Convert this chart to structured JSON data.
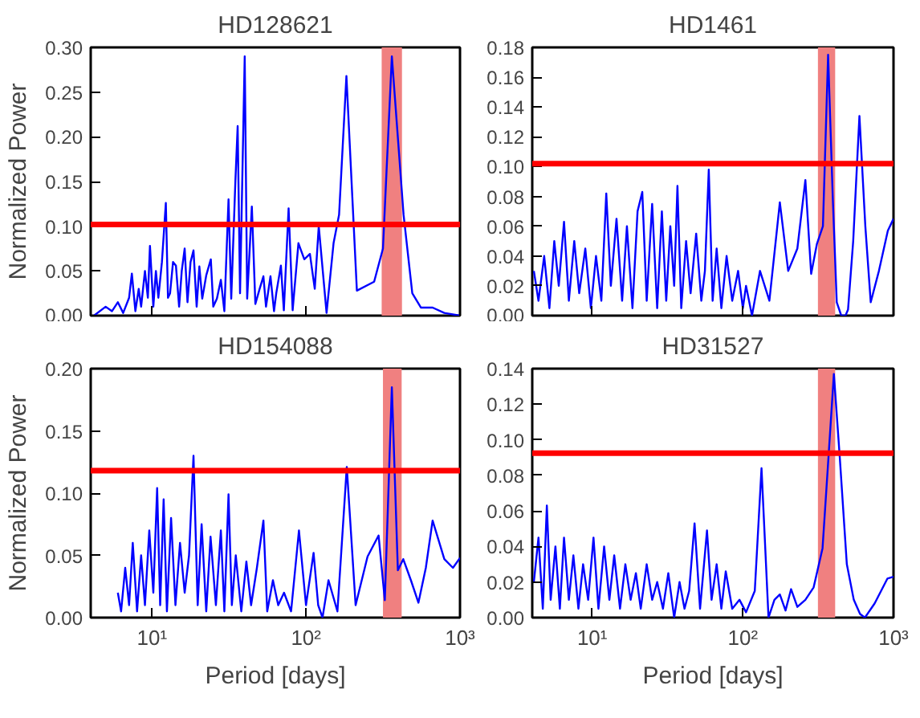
{
  "chart_data": [
    {
      "type": "line",
      "title": "HD128621",
      "ylabel": "Normalized Power",
      "log": "x",
      "grid": false,
      "tick_labels": "y",
      "xlim": [
        4,
        1000
      ],
      "xticks": [
        {
          "value": 10,
          "label": null
        },
        {
          "value": 100,
          "label": null
        },
        {
          "value": 1000,
          "label": null
        }
      ],
      "ylim": [
        0,
        0.3
      ],
      "yticks": [
        {
          "value": 0,
          "label": "0.00"
        },
        {
          "value": 0.05,
          "label": "0.05"
        },
        {
          "value": 0.1,
          "label": "0.10"
        },
        {
          "value": 0.15,
          "label": "0.15"
        },
        {
          "value": 0.2,
          "label": "0.20"
        },
        {
          "value": 0.25,
          "label": "0.25"
        },
        {
          "value": 0.3,
          "label": "0.30"
        }
      ],
      "x": [
        4.2,
        5.0,
        5.5,
        6.0,
        6.5,
        7.1,
        7.4,
        7.8,
        8.2,
        8.5,
        9.0,
        9.4,
        9.7,
        10.2,
        10.6,
        11.0,
        11.6,
        12.3,
        12.7,
        13.1,
        13.7,
        14.3,
        15,
        15.6,
        16.3,
        17,
        17.8,
        18.6,
        19.5,
        20.3,
        21.2,
        22.5,
        24.1,
        25,
        26.4,
        28,
        29.5,
        31.4,
        32.7,
        34.8,
        36.0,
        37.3,
        40.0,
        41.5,
        44.5,
        46.9,
        50,
        52.9,
        55,
        58.8,
        62,
        64.1,
        68.7,
        71.8,
        77.1,
        81.9,
        89.3,
        97.5,
        106,
        114,
        121,
        136,
        151,
        164,
        183,
        214,
        277,
        316,
        361,
        430,
        490,
        557,
        664,
        791,
        1000
      ],
      "series": [
        {
          "color": "#0000ff",
          "values": [
            0.0,
            0.01,
            0.005,
            0.015,
            0.003,
            0.02,
            0.047,
            0.005,
            0.03,
            0.01,
            0.05,
            0.02,
            0.078,
            0.01,
            0.05,
            0.02,
            0.06,
            0.126,
            0.02,
            0.025,
            0.06,
            0.056,
            0.01,
            0.05,
            0.075,
            0.015,
            0.06,
            0.073,
            0.01,
            0.055,
            0.019,
            0.045,
            0.063,
            0.01,
            0.019,
            0.04,
            0.005,
            0.13,
            0.019,
            0.151,
            0.212,
            0.025,
            0.29,
            0.019,
            0.122,
            0.013,
            0.03,
            0.044,
            0.01,
            0.044,
            0.005,
            0.025,
            0.056,
            0.006,
            0.12,
            0.006,
            0.081,
            0.063,
            0.069,
            0.03,
            0.1,
            0.003,
            0.081,
            0.113,
            0.268,
            0.028,
            0.038,
            0.075,
            0.29,
            0.113,
            0.025,
            0.009,
            0.009,
            0.003,
            0.0
          ]
        }
      ],
      "ref_lines": [
        {
          "axis": "y",
          "value": 0.102,
          "color": "#ff0000"
        }
      ],
      "bands": [
        {
          "axis": "x",
          "from": 310,
          "to": 420,
          "color": "#f08080"
        }
      ]
    },
    {
      "type": "line",
      "title": "HD1461",
      "log": "x",
      "grid": false,
      "tick_labels": "y",
      "xlim": [
        4,
        1000
      ],
      "xticks": [
        {
          "value": 10,
          "label": null
        },
        {
          "value": 100,
          "label": null
        },
        {
          "value": 1000,
          "label": null
        }
      ],
      "ylim": [
        0,
        0.18
      ],
      "yticks": [
        {
          "value": 0,
          "label": "0.00"
        },
        {
          "value": 0.02,
          "label": "0.02"
        },
        {
          "value": 0.04,
          "label": "0.04"
        },
        {
          "value": 0.06,
          "label": "0.06"
        },
        {
          "value": 0.08,
          "label": "0.08"
        },
        {
          "value": 0.1,
          "label": "0.10"
        },
        {
          "value": 0.12,
          "label": "0.12"
        },
        {
          "value": 0.14,
          "label": "0.14"
        },
        {
          "value": 0.16,
          "label": "0.16"
        },
        {
          "value": 0.18,
          "label": "0.18"
        }
      ],
      "x": [
        4.1,
        4.4,
        4.8,
        5.2,
        5.6,
        6.0,
        6.5,
        7.0,
        7.6,
        8.2,
        9.0,
        9.8,
        10.6,
        11.5,
        12.4,
        13.3,
        14.5,
        15.8,
        17,
        18.5,
        20,
        21.5,
        23,
        25,
        27,
        29,
        31,
        33,
        35,
        36.8,
        39,
        42,
        45,
        49,
        53,
        56,
        59.4,
        63,
        67,
        72,
        78,
        85,
        93,
        100,
        105,
        115,
        130,
        150,
        176,
        200,
        230,
        260,
        284,
        310,
        340,
        368,
        395,
        420,
        450,
        480,
        499,
        540,
        594,
        650,
        706,
        800,
        917,
        1000
      ],
      "series": [
        {
          "color": "#0000ff",
          "values": [
            0.03,
            0.01,
            0.04,
            0.005,
            0.05,
            0.02,
            0.063,
            0.01,
            0.05,
            0.015,
            0.045,
            0.005,
            0.04,
            0.01,
            0.082,
            0.02,
            0.065,
            0.01,
            0.06,
            0.005,
            0.07,
            0.083,
            0.01,
            0.075,
            0.005,
            0.07,
            0.01,
            0.06,
            0.02,
            0.087,
            0.005,
            0.05,
            0.015,
            0.055,
            0.01,
            0.03,
            0.098,
            0.01,
            0.045,
            0.005,
            0.04,
            0.01,
            0.03,
            0.005,
            0.02,
            0.0,
            0.03,
            0.01,
            0.076,
            0.03,
            0.045,
            0.091,
            0.028,
            0.048,
            0.06,
            0.175,
            0.08,
            0.009,
            0.0,
            0.0,
            0.004,
            0.05,
            0.134,
            0.06,
            0.009,
            0.03,
            0.057,
            0.065
          ]
        }
      ],
      "ref_lines": [
        {
          "axis": "y",
          "value": 0.102,
          "color": "#ff0000"
        }
      ],
      "bands": [
        {
          "axis": "x",
          "from": 315,
          "to": 410,
          "color": "#f08080"
        }
      ]
    },
    {
      "type": "line",
      "title": "HD154088",
      "ylabel": "Normalized Power",
      "xlabel": "Period [days]",
      "log": "x",
      "grid": false,
      "xlim": [
        4,
        1000
      ],
      "xticks": [
        {
          "value": 10,
          "label": "10¹"
        },
        {
          "value": 100,
          "label": "10²"
        },
        {
          "value": 1000,
          "label": "10³"
        }
      ],
      "ylim": [
        0,
        0.2
      ],
      "yticks": [
        {
          "value": 0,
          "label": "0.00"
        },
        {
          "value": 0.05,
          "label": "0.05"
        },
        {
          "value": 0.1,
          "label": "0.10"
        },
        {
          "value": 0.15,
          "label": "0.15"
        },
        {
          "value": 0.2,
          "label": "0.20"
        }
      ],
      "x": [
        6.0,
        6.3,
        6.7,
        7.1,
        7.5,
        8.0,
        8.5,
        9.0,
        9.6,
        10.2,
        10.8,
        11.3,
        11.9,
        12.5,
        13.3,
        14.2,
        15.2,
        16.3,
        17.4,
        18.6,
        19.8,
        21,
        22.5,
        24,
        26,
        28,
        29.5,
        31.4,
        33,
        35,
        38,
        41,
        44,
        48,
        52.9,
        56,
        61,
        66,
        72,
        80,
        90,
        100,
        112,
        120,
        128,
        140,
        160,
        184,
        210,
        251,
        296,
        325,
        361,
        395,
        428,
        480,
        537,
        600,
        664,
        791,
        900,
        1000
      ],
      "series": [
        {
          "color": "#0000ff",
          "values": [
            0.02,
            0.005,
            0.04,
            0.01,
            0.06,
            0.005,
            0.05,
            0.01,
            0.07,
            0.02,
            0.104,
            0.01,
            0.095,
            0.005,
            0.08,
            0.01,
            0.06,
            0.02,
            0.05,
            0.13,
            0.01,
            0.075,
            0.005,
            0.065,
            0.01,
            0.07,
            0.005,
            0.099,
            0.01,
            0.05,
            0.005,
            0.045,
            0.01,
            0.04,
            0.078,
            0.005,
            0.03,
            0.01,
            0.02,
            0.005,
            0.07,
            0.01,
            0.052,
            0.01,
            0.0,
            0.03,
            0.005,
            0.121,
            0.01,
            0.049,
            0.066,
            0.014,
            0.185,
            0.038,
            0.047,
            0.03,
            0.012,
            0.04,
            0.078,
            0.047,
            0.04,
            0.048
          ]
        }
      ],
      "ref_lines": [
        {
          "axis": "y",
          "value": 0.118,
          "color": "#ff0000"
        }
      ],
      "bands": [
        {
          "axis": "x",
          "from": 316,
          "to": 418,
          "color": "#f08080"
        }
      ]
    },
    {
      "type": "line",
      "title": "HD31527",
      "xlabel": "Period [days]",
      "log": "x",
      "grid": false,
      "xlim": [
        4,
        1000
      ],
      "xticks": [
        {
          "value": 10,
          "label": "10¹"
        },
        {
          "value": 100,
          "label": "10²"
        },
        {
          "value": 1000,
          "label": "10³"
        }
      ],
      "ylim": [
        0,
        0.14
      ],
      "yticks": [
        {
          "value": 0,
          "label": "0.00"
        },
        {
          "value": 0.02,
          "label": "0.02"
        },
        {
          "value": 0.04,
          "label": "0.04"
        },
        {
          "value": 0.06,
          "label": "0.06"
        },
        {
          "value": 0.08,
          "label": "0.08"
        },
        {
          "value": 0.1,
          "label": "0.10"
        },
        {
          "value": 0.12,
          "label": "0.12"
        },
        {
          "value": 0.14,
          "label": "0.14"
        }
      ],
      "x": [
        4.1,
        4.4,
        4.7,
        5.0,
        5.3,
        5.7,
        6.1,
        6.5,
        7.0,
        7.5,
        8.1,
        8.7,
        9.4,
        10.2,
        11,
        12,
        13,
        14,
        15.3,
        16.6,
        18,
        19.5,
        21,
        23,
        25,
        27,
        29.5,
        32,
        35,
        38,
        41,
        44,
        47.8,
        52,
        57.8,
        62,
        67,
        72,
        77,
        85,
        95,
        105,
        120,
        133,
        148,
        162,
        176,
        192,
        209,
        230,
        260,
        295,
        338,
        370,
        402,
        440,
        490,
        545,
        600,
        646,
        750,
        912,
        1000
      ],
      "series": [
        {
          "color": "#0000ff",
          "values": [
            0.02,
            0.045,
            0.005,
            0.063,
            0.01,
            0.04,
            0.005,
            0.045,
            0.01,
            0.035,
            0.005,
            0.03,
            0.01,
            0.045,
            0.005,
            0.04,
            0.01,
            0.035,
            0.005,
            0.03,
            0.01,
            0.025,
            0.005,
            0.03,
            0.01,
            0.02,
            0.005,
            0.025,
            0.0,
            0.02,
            0.005,
            0.015,
            0.053,
            0.005,
            0.049,
            0.01,
            0.03,
            0.005,
            0.026,
            0.005,
            0.01,
            0.003,
            0.015,
            0.084,
            0.0,
            0.01,
            0.013,
            0.004,
            0.016,
            0.006,
            0.01,
            0.017,
            0.039,
            0.09,
            0.137,
            0.09,
            0.03,
            0.01,
            0.002,
            0.0,
            0.008,
            0.022,
            0.023
          ]
        }
      ],
      "ref_lines": [
        {
          "axis": "y",
          "value": 0.0925,
          "color": "#ff0000"
        }
      ],
      "bands": [
        {
          "axis": "x",
          "from": 315,
          "to": 410,
          "color": "#f08080"
        }
      ]
    }
  ]
}
